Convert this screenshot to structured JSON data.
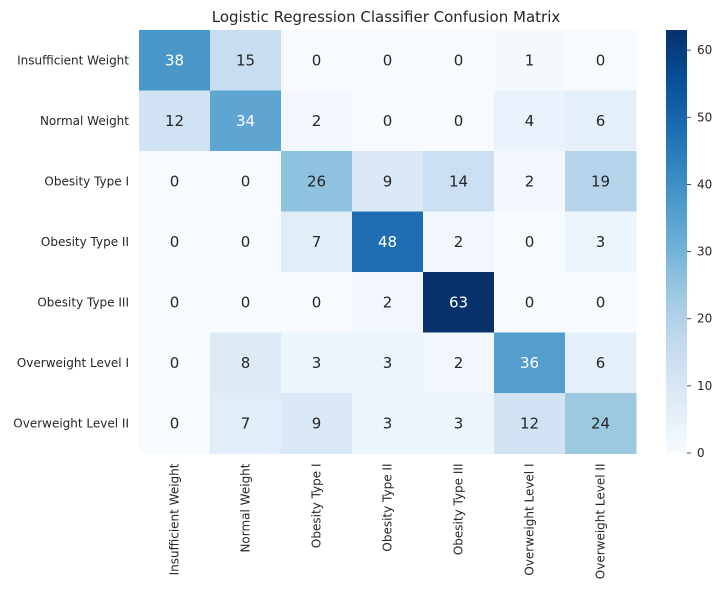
{
  "chart_data": {
    "type": "heatmap",
    "title": "Logistic Regression Classifier Confusion Matrix",
    "xlabel": "",
    "ylabel": "",
    "row_labels": [
      "Insufficient Weight",
      "Normal Weight",
      "Obesity Type I",
      "Obesity Type II",
      "Obesity Type III",
      "Overweight Level I",
      "Overweight Level II"
    ],
    "col_labels": [
      "Insufficient Weight",
      "Normal Weight",
      "Obesity Type I",
      "Obesity Type II",
      "Obesity Type III",
      "Overweight Level I",
      "Overweight Level II"
    ],
    "values": [
      [
        38,
        15,
        0,
        0,
        0,
        1,
        0
      ],
      [
        12,
        34,
        2,
        0,
        0,
        4,
        6
      ],
      [
        0,
        0,
        26,
        9,
        14,
        2,
        19
      ],
      [
        0,
        0,
        7,
        48,
        2,
        0,
        3
      ],
      [
        0,
        0,
        0,
        2,
        63,
        0,
        0
      ],
      [
        0,
        8,
        3,
        3,
        2,
        36,
        6
      ],
      [
        0,
        7,
        9,
        3,
        3,
        12,
        24
      ]
    ],
    "colormap": "Blues",
    "colorbar": {
      "range": [
        0,
        63
      ],
      "ticks": [
        0,
        10,
        20,
        30,
        40,
        50,
        60
      ]
    },
    "annotated": true
  }
}
